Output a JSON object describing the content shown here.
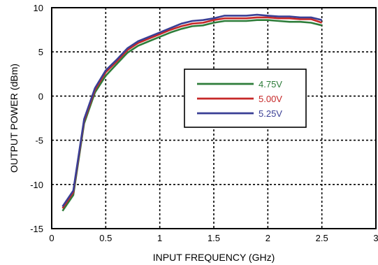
{
  "chart_data": {
    "type": "line",
    "title": "",
    "xlabel": "INPUT FREQUENCY (GHz)",
    "ylabel": "OUTPUT POWER (dBm)",
    "xlim": [
      0,
      3
    ],
    "ylim": [
      -15,
      10
    ],
    "xticks": [
      "0",
      "0.5",
      "1",
      "1.5",
      "2",
      "2.5",
      "3"
    ],
    "yticks": [
      "10",
      "5",
      "0",
      "-5",
      "-10",
      "-15"
    ],
    "grid": true,
    "legend_position": "center-right",
    "x": [
      0.1,
      0.2,
      0.3,
      0.4,
      0.5,
      0.6,
      0.7,
      0.8,
      0.9,
      1.0,
      1.1,
      1.2,
      1.3,
      1.4,
      1.5,
      1.6,
      1.7,
      1.8,
      1.9,
      2.0,
      2.1,
      2.2,
      2.3,
      2.4,
      2.5
    ],
    "series": [
      {
        "name": "4.75V",
        "color": "#2e7d3a",
        "values": [
          -13.0,
          -11.2,
          -3.1,
          0.4,
          2.3,
          3.6,
          4.9,
          5.7,
          6.2,
          6.7,
          7.2,
          7.6,
          7.9,
          8.0,
          8.3,
          8.5,
          8.5,
          8.5,
          8.6,
          8.6,
          8.5,
          8.4,
          8.4,
          8.3,
          8.0
        ]
      },
      {
        "name": "5.00V",
        "color": "#c62828",
        "values": [
          -12.7,
          -10.9,
          -2.8,
          0.7,
          2.7,
          3.9,
          5.2,
          6.0,
          6.5,
          7.0,
          7.5,
          7.9,
          8.2,
          8.3,
          8.6,
          8.8,
          8.8,
          8.8,
          8.9,
          8.9,
          8.8,
          8.8,
          8.7,
          8.7,
          8.3
        ]
      },
      {
        "name": "5.25V",
        "color": "#3a3f95",
        "values": [
          -12.5,
          -10.7,
          -2.6,
          0.9,
          2.9,
          4.1,
          5.4,
          6.2,
          6.7,
          7.2,
          7.7,
          8.2,
          8.5,
          8.6,
          8.8,
          9.1,
          9.1,
          9.1,
          9.2,
          9.1,
          9.0,
          9.0,
          8.9,
          8.9,
          8.6
        ]
      }
    ]
  }
}
